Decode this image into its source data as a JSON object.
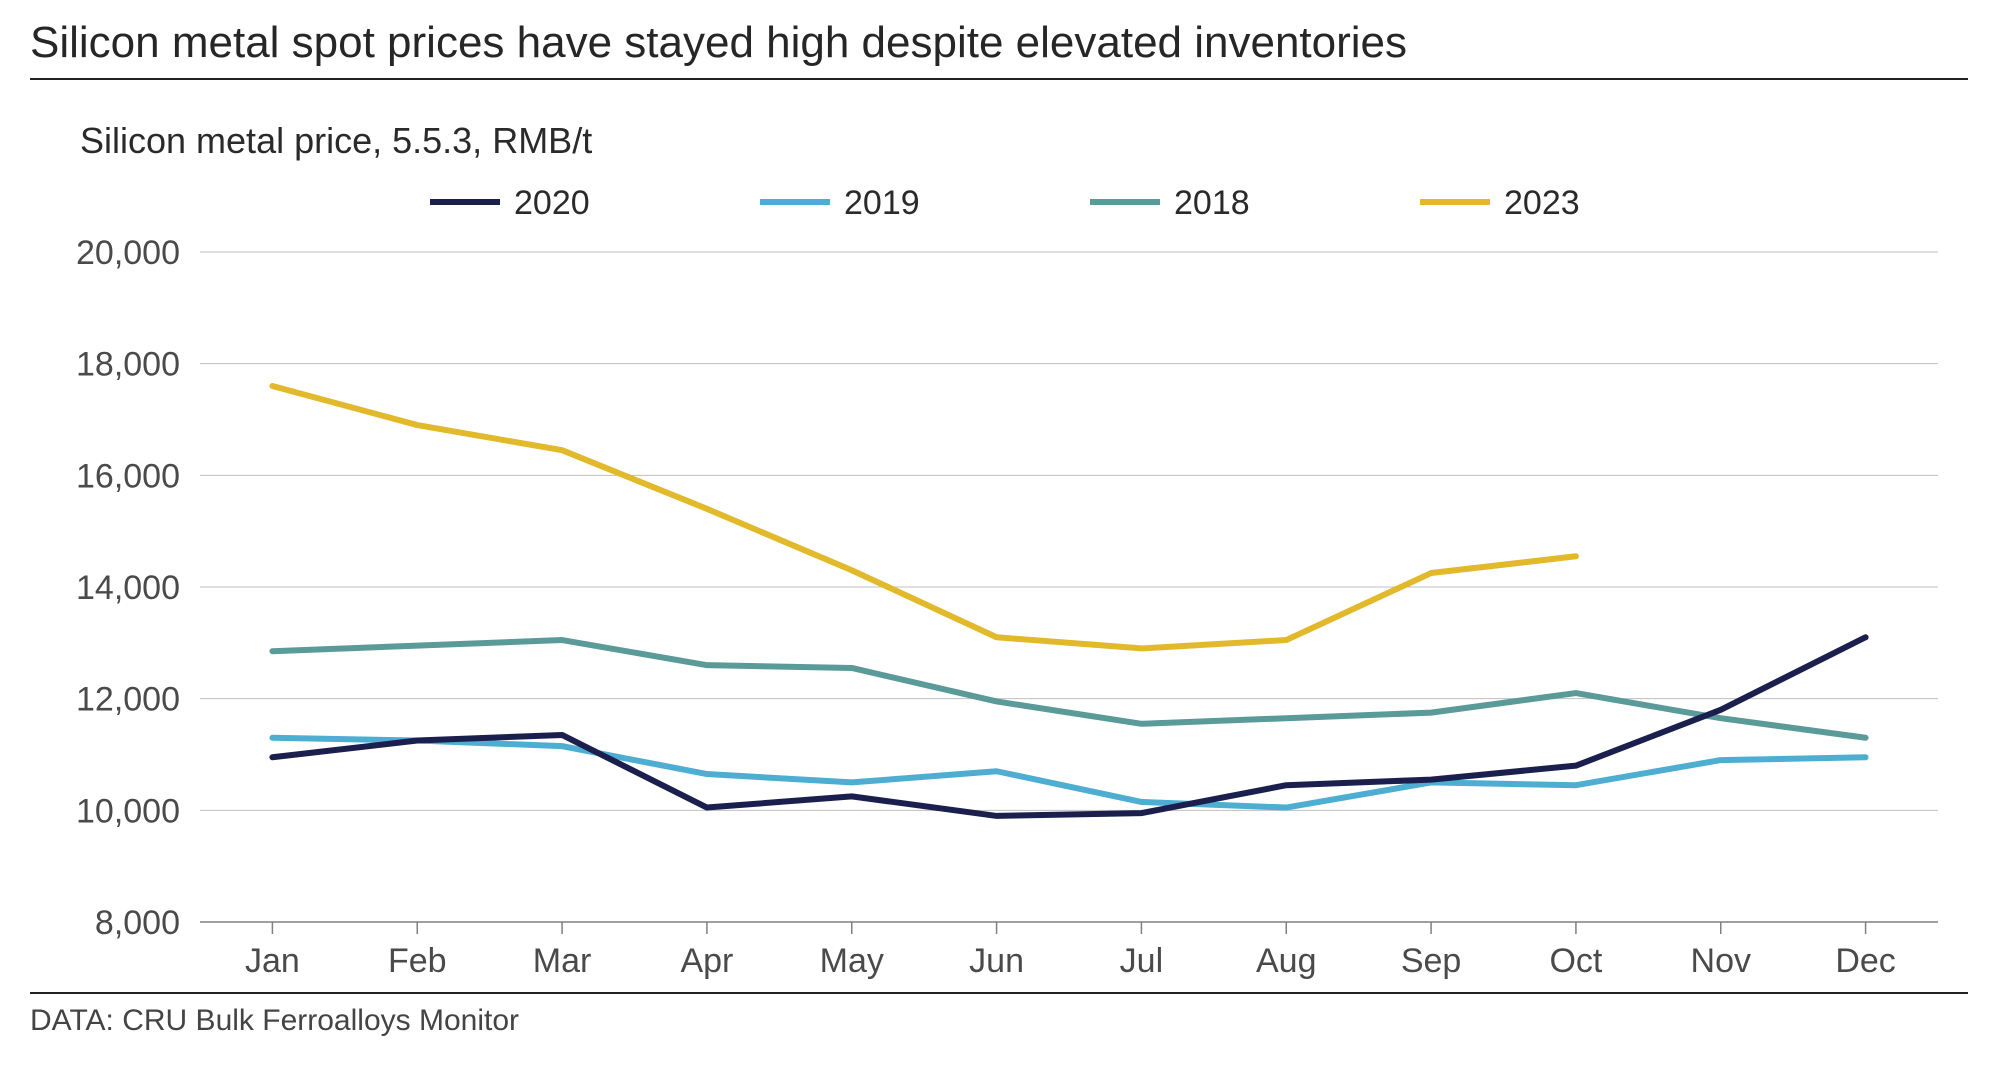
{
  "title": "Silicon metal spot prices have stayed high despite elevated inventories",
  "subtitle": "Silicon metal price, 5.5.3, RMB/t",
  "source": "DATA: CRU Bulk Ferroalloys Monitor",
  "chart": {
    "type": "line",
    "background_color": "#ffffff",
    "grid_color": "#bfbfbf",
    "axis_line_color": "#808080",
    "text_color": "#4a4a4a",
    "label_fontsize": 34,
    "line_width": 6,
    "x_labels": [
      "Jan",
      "Feb",
      "Mar",
      "Apr",
      "May",
      "Jun",
      "Jul",
      "Aug",
      "Sep",
      "Oct",
      "Nov",
      "Dec"
    ],
    "y_min": 8000,
    "y_max": 20000,
    "y_tick_step": 2000,
    "y_tick_labels": [
      "8,000",
      "10,000",
      "12,000",
      "14,000",
      "16,000",
      "18,000",
      "20,000"
    ],
    "legend_order": [
      "2020",
      "2019",
      "2018",
      "2023"
    ],
    "series": {
      "2020": {
        "color": "#1a1f4d",
        "values": [
          10950,
          11250,
          11350,
          10050,
          10250,
          9900,
          9950,
          10450,
          10550,
          10800,
          11800,
          13100
        ]
      },
      "2019": {
        "color": "#4daed1",
        "values": [
          11300,
          11250,
          11150,
          10650,
          10500,
          10700,
          10150,
          10050,
          10500,
          10450,
          10900,
          10950
        ]
      },
      "2018": {
        "color": "#5a9a99",
        "values": [
          12850,
          12950,
          13050,
          12600,
          12550,
          11950,
          11550,
          11650,
          11750,
          12100,
          11650,
          11300
        ]
      },
      "2023": {
        "color": "#e1b92b",
        "values": [
          17600,
          16900,
          16450,
          15400,
          14300,
          13100,
          12900,
          13050,
          14250,
          14550
        ]
      }
    },
    "legend": {
      "swatch_width": 70,
      "swatch_height": 6,
      "gap": 260
    }
  }
}
